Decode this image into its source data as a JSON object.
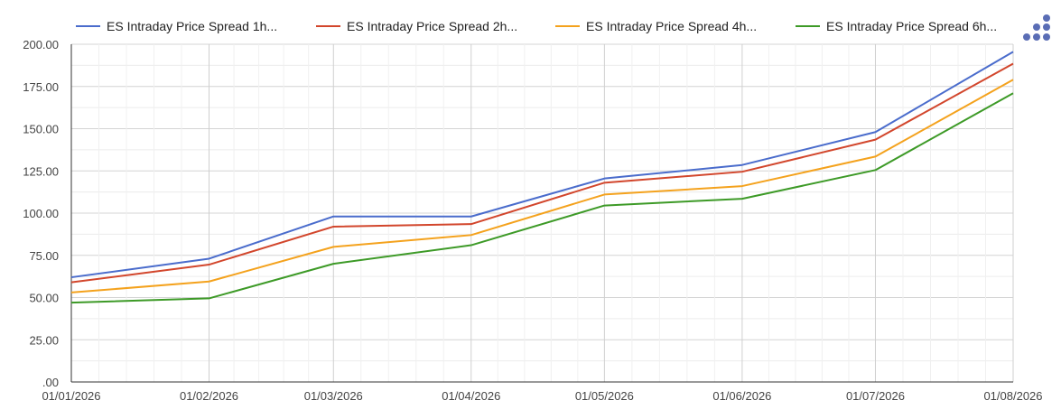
{
  "chart_data": {
    "type": "line",
    "title": "",
    "xlabel": "",
    "ylabel": "",
    "x": [
      "01/01/2026",
      "01/02/2026",
      "01/03/2026",
      "01/04/2026",
      "01/05/2026",
      "01/06/2026",
      "01/07/2026",
      "01/08/2026"
    ],
    "x_days": [
      0,
      31,
      59,
      90,
      120,
      151,
      181,
      212
    ],
    "ylim": [
      0,
      200
    ],
    "y_ticks": [
      ".00",
      "25.00",
      "50.00",
      "75.00",
      "100.00",
      "125.00",
      "150.00",
      "175.00",
      "200.00"
    ],
    "grid": true,
    "legend_position": "top",
    "series": [
      {
        "name": "ES Intraday Price Spread 1h...",
        "color": "#4a6ccc",
        "values": [
          62,
          73,
          98,
          98,
          120.5,
          128.5,
          148,
          195.5
        ]
      },
      {
        "name": "ES Intraday Price Spread 2h...",
        "color": "#d2462c",
        "values": [
          59,
          69.5,
          92,
          93.5,
          118,
          124.5,
          143.5,
          188.5
        ]
      },
      {
        "name": "ES Intraday Price Spread 4h...",
        "color": "#f4a21d",
        "values": [
          53,
          59.5,
          80,
          87,
          111,
          116,
          133.5,
          179
        ]
      },
      {
        "name": "ES Intraday Price Spread 6h...",
        "color": "#3d9a27",
        "values": [
          47,
          49.5,
          70,
          81,
          104.5,
          108.5,
          125.5,
          171
        ]
      }
    ]
  },
  "toolbar": {
    "menu_icon": "dots-menu-icon",
    "icon_color": "#5a6db5"
  }
}
